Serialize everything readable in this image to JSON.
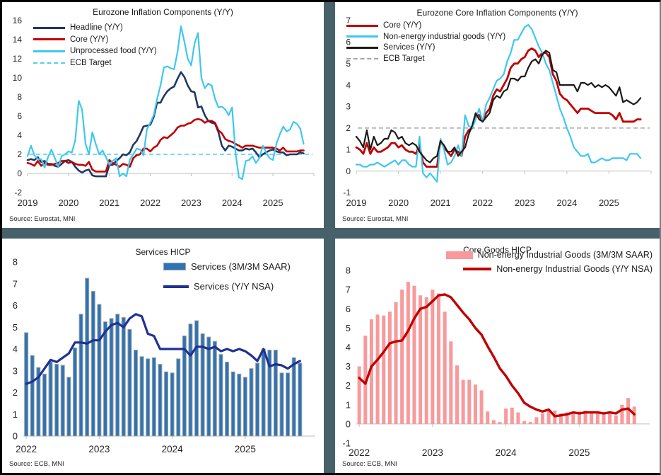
{
  "frame": {
    "divider_color": "#46616A",
    "background": "#FFFFFF",
    "border_color": "#000000"
  },
  "chart_data": [
    {
      "id": "tl",
      "type": "line",
      "title": "Eurozone Inflation Components (Y/Y)",
      "source": "Source: Eurostat, MNI",
      "x_start": 2019,
      "xlim": [
        2019,
        2026
      ],
      "x_ticks": [
        2019,
        2020,
        2021,
        2022,
        2023,
        2024,
        2025
      ],
      "ylim": [
        -2,
        16
      ],
      "ytick_step": 2,
      "grid": "zero-axis-only",
      "legend_position": "top-left",
      "target": {
        "label": "ECB Target",
        "value": 2,
        "color": "#55CCF2"
      },
      "series": [
        {
          "name": "Headline (Y/Y)",
          "color": "#1F3864",
          "width": 2.6,
          "values": [
            1.4,
            1.5,
            1.4,
            1.7,
            1.2,
            1.3,
            1.0,
            1.0,
            0.8,
            0.7,
            1.0,
            1.3,
            1.4,
            1.2,
            0.7,
            0.3,
            0.1,
            0.3,
            0.4,
            -0.2,
            -0.3,
            -0.3,
            -0.3,
            -0.3,
            0.9,
            0.9,
            1.3,
            1.6,
            2.0,
            1.9,
            2.2,
            3.0,
            3.4,
            4.1,
            4.9,
            5.0,
            5.1,
            5.9,
            7.4,
            7.4,
            8.1,
            8.6,
            8.9,
            9.1,
            9.9,
            10.6,
            10.1,
            9.2,
            8.6,
            8.5,
            6.9,
            7.0,
            6.1,
            5.5,
            5.3,
            5.2,
            4.3,
            2.9,
            2.4,
            2.9,
            2.8,
            2.6,
            2.4,
            2.4,
            2.6,
            2.5,
            2.6,
            2.2,
            1.7,
            2.0,
            2.2,
            2.4,
            2.5,
            2.3,
            2.2,
            2.2,
            1.9,
            2.0,
            2.0,
            2.0,
            2.2,
            2.1
          ]
        },
        {
          "name": "Core (Y/Y)",
          "color": "#C00000",
          "width": 2.6,
          "values": [
            1.1,
            1.0,
            0.8,
            1.3,
            0.8,
            1.1,
            0.9,
            0.9,
            1.0,
            1.1,
            1.3,
            1.3,
            1.1,
            1.2,
            1.0,
            0.9,
            0.9,
            0.8,
            1.2,
            0.4,
            0.2,
            0.2,
            0.2,
            0.2,
            1.4,
            1.1,
            0.9,
            0.7,
            1.0,
            0.9,
            0.7,
            1.6,
            1.9,
            2.0,
            2.6,
            2.6,
            2.3,
            2.7,
            2.9,
            3.5,
            3.8,
            3.7,
            4.0,
            4.3,
            4.8,
            5.0,
            5.0,
            5.2,
            5.3,
            5.6,
            5.7,
            5.6,
            5.3,
            5.5,
            5.5,
            5.3,
            4.5,
            4.2,
            3.6,
            3.4,
            3.3,
            3.1,
            2.9,
            2.7,
            2.9,
            2.9,
            2.9,
            2.8,
            2.7,
            2.7,
            2.7,
            2.7,
            2.7,
            2.6,
            2.4,
            2.7,
            2.3,
            2.3,
            2.3,
            2.3,
            2.4,
            2.4
          ]
        },
        {
          "name": "Unprocessed food (Y/Y)",
          "color": "#3EC7F0",
          "width": 2.2,
          "values": [
            1.8,
            2.9,
            1.9,
            1.5,
            1.5,
            0.6,
            1.7,
            2.5,
            1.6,
            0.7,
            1.8,
            2.0,
            2.3,
            2.2,
            3.5,
            7.6,
            6.7,
            3.1,
            2.0,
            4.3,
            3.1,
            2.0,
            2.4,
            1.7,
            0.9,
            1.3,
            1.6,
            -0.3,
            0.0,
            -0.3,
            1.4,
            2.0,
            2.6,
            2.5,
            1.9,
            4.6,
            5.3,
            6.1,
            7.8,
            9.2,
            11.1,
            11.2,
            11.0,
            10.9,
            12.7,
            15.4,
            13.8,
            12.0,
            11.3,
            13.6,
            14.7,
            10.0,
            8.9,
            9.4,
            9.2,
            7.8,
            6.9,
            7.0,
            6.7,
            6.1,
            6.9,
            2.2,
            -0.4,
            -0.6,
            1.3,
            1.4,
            1.8,
            1.1,
            1.6,
            2.9,
            2.2,
            1.6,
            1.4,
            3.1,
            4.1,
            4.9,
            4.4,
            4.6,
            5.4,
            5.2,
            4.7,
            3.1
          ]
        }
      ]
    },
    {
      "id": "tr",
      "type": "line",
      "title": "Eurozone Core Inflation Components (Y/Y)",
      "source": "Source: Eurostat, MNI",
      "x_start": 2019,
      "xlim": [
        2019,
        2026
      ],
      "x_ticks": [
        2019,
        2020,
        2021,
        2022,
        2023,
        2024,
        2025
      ],
      "ylim": [
        -1,
        7
      ],
      "ytick_step": 1,
      "grid": "zero-axis-only",
      "legend_position": "top-left",
      "target": {
        "label": "ECB Target",
        "value": 2,
        "color": "#A6A6A6"
      },
      "series": [
        {
          "name": "Core (Y/Y)",
          "color": "#C00000",
          "width": 2.8,
          "values": [
            1.1,
            1.0,
            0.8,
            1.3,
            0.8,
            1.1,
            0.9,
            0.9,
            1.0,
            1.1,
            1.3,
            1.3,
            1.1,
            1.2,
            1.0,
            0.9,
            0.9,
            0.8,
            1.2,
            0.4,
            0.2,
            0.2,
            0.2,
            0.2,
            1.4,
            1.1,
            0.9,
            0.7,
            1.0,
            0.9,
            0.7,
            1.6,
            1.9,
            2.0,
            2.6,
            2.6,
            2.3,
            2.7,
            2.9,
            3.5,
            3.8,
            3.7,
            4.0,
            4.3,
            4.8,
            5.0,
            5.0,
            5.2,
            5.3,
            5.6,
            5.7,
            5.6,
            5.3,
            5.5,
            5.5,
            5.3,
            4.5,
            4.2,
            3.6,
            3.4,
            3.3,
            3.1,
            2.9,
            2.7,
            2.9,
            2.9,
            2.9,
            2.8,
            2.7,
            2.7,
            2.7,
            2.7,
            2.7,
            2.6,
            2.4,
            2.7,
            2.3,
            2.3,
            2.3,
            2.3,
            2.4,
            2.4
          ]
        },
        {
          "name": "Non-energy industrial goods (Y/Y)",
          "color": "#3EC7F0",
          "width": 2.2,
          "values": [
            0.3,
            0.3,
            0.2,
            0.2,
            0.3,
            0.3,
            0.4,
            0.3,
            0.2,
            0.3,
            0.4,
            0.5,
            0.3,
            0.5,
            0.5,
            0.3,
            0.2,
            0.2,
            1.6,
            -0.1,
            -0.3,
            -0.1,
            -0.3,
            -0.5,
            1.5,
            1.0,
            0.3,
            0.4,
            0.7,
            1.2,
            0.7,
            2.6,
            2.1,
            2.0,
            2.4,
            2.9,
            2.3,
            3.1,
            3.4,
            3.8,
            4.2,
            4.3,
            4.5,
            5.1,
            5.5,
            6.1,
            6.1,
            6.4,
            6.7,
            6.8,
            6.6,
            6.2,
            5.8,
            5.5,
            5.0,
            4.7,
            4.1,
            3.5,
            2.9,
            2.5,
            2.0,
            1.6,
            1.1,
            0.9,
            0.7,
            0.7,
            0.8,
            0.4,
            0.4,
            0.5,
            0.6,
            0.5,
            0.5,
            0.6,
            0.6,
            0.6,
            0.6,
            0.5,
            0.8,
            0.8,
            0.8,
            0.6
          ]
        },
        {
          "name": "Services (Y/Y)",
          "color": "#1A1A1A",
          "width": 2.2,
          "values": [
            1.6,
            1.4,
            1.1,
            1.9,
            1.0,
            1.6,
            1.2,
            1.3,
            1.5,
            1.5,
            1.9,
            1.8,
            1.5,
            1.6,
            1.3,
            1.2,
            1.3,
            1.2,
            0.9,
            0.7,
            0.5,
            0.4,
            0.6,
            0.7,
            1.4,
            1.2,
            0.9,
            0.9,
            1.1,
            0.7,
            0.9,
            1.1,
            1.7,
            2.1,
            2.7,
            2.4,
            2.3,
            2.5,
            2.7,
            3.3,
            3.5,
            3.4,
            3.7,
            3.8,
            4.3,
            4.3,
            4.2,
            4.4,
            4.4,
            4.8,
            5.1,
            5.2,
            5.0,
            5.4,
            5.6,
            5.5,
            4.7,
            4.6,
            4.0,
            4.0,
            4.0,
            4.0,
            4.0,
            3.7,
            4.1,
            4.1,
            4.0,
            4.1,
            3.9,
            4.0,
            3.9,
            4.0,
            3.9,
            3.7,
            3.5,
            3.9,
            3.2,
            3.3,
            3.2,
            3.1,
            3.2,
            3.4
          ]
        }
      ]
    },
    {
      "id": "bl",
      "type": "bar-line",
      "title": "Services HICP",
      "source": "Source: ECB, MNI",
      "x_start": 2022,
      "xlim": [
        2021.96,
        2025.96
      ],
      "x_ticks": [
        2022,
        2023,
        2024,
        2025
      ],
      "ylim": [
        0,
        8
      ],
      "ytick_step": 1,
      "grid": "zero-axis-only",
      "legend_position": "top-right",
      "bars": {
        "name": "Services (3M/3M SAAR)",
        "fill": "#2E74B5",
        "stroke": "#A3A3A3",
        "values": [
          4.75,
          3.7,
          3.15,
          2.85,
          3.4,
          3.3,
          3.25,
          2.7,
          4.05,
          5.6,
          7.25,
          6.65,
          6.05,
          5.25,
          5.4,
          5.6,
          5.45,
          4.9,
          3.95,
          3.65,
          3.55,
          3.6,
          3.3,
          2.95,
          2.9,
          3.55,
          4.6,
          5.15,
          5.3,
          4.7,
          4.55,
          4.35,
          3.75,
          3.4,
          2.95,
          2.85,
          2.7,
          3.1,
          3.35,
          4.0,
          3.95,
          3.95,
          2.9,
          2.9,
          3.6,
          3.35
        ]
      },
      "series": [
        {
          "name": "Services (Y/Y NSA)",
          "color": "#1F3191",
          "width": 3.2,
          "values": [
            2.4,
            2.5,
            2.7,
            3.1,
            3.5,
            3.4,
            3.6,
            3.8,
            4.3,
            4.3,
            4.25,
            4.4,
            4.4,
            4.8,
            5.1,
            5.2,
            5.0,
            5.4,
            5.6,
            5.5,
            4.7,
            4.6,
            4.0,
            4.0,
            4.0,
            4.0,
            4.0,
            3.7,
            4.1,
            4.1,
            4.0,
            4.1,
            3.9,
            4.0,
            3.9,
            4.0,
            3.9,
            3.7,
            3.45,
            4.0,
            3.2,
            3.3,
            3.25,
            3.1,
            3.3,
            3.45
          ]
        }
      ]
    },
    {
      "id": "br",
      "type": "bar-line",
      "title": "Core Goods HICP",
      "source": "Source: ECB, MNI",
      "x_start": 2022,
      "xlim": [
        2021.96,
        2025.96
      ],
      "x_ticks": [
        2022,
        2023,
        2024,
        2025
      ],
      "ylim": [
        -1,
        8
      ],
      "ytick_step": 1,
      "grid": "zero-axis-only",
      "legend_position": "top-right",
      "bars": {
        "name": "Non-energy Industrial Goods (3M/3M SAAR)",
        "fill": "#F8999B",
        "stroke": null,
        "values": [
          3.0,
          4.6,
          5.45,
          5.7,
          5.65,
          5.85,
          6.35,
          7.0,
          7.4,
          7.2,
          6.7,
          6.6,
          7.0,
          6.8,
          5.85,
          4.3,
          3.05,
          2.3,
          2.3,
          2.05,
          1.75,
          0.65,
          0.2,
          0.1,
          0.8,
          0.85,
          0.6,
          0.15,
          0.1,
          0.35,
          0.55,
          0.75,
          0.7,
          0.55,
          0.6,
          0.55,
          0.65,
          0.7,
          0.6,
          0.55,
          0.6,
          0.55,
          0.45,
          1.0,
          1.35,
          0.9
        ]
      },
      "series": [
        {
          "name": "Non-energy Industrial Goods (Y/Y NSA)",
          "color": "#C00000",
          "width": 3.4,
          "values": [
            2.4,
            2.1,
            3.0,
            3.35,
            3.75,
            4.2,
            4.3,
            4.35,
            4.85,
            5.5,
            6.0,
            6.1,
            6.4,
            6.7,
            6.75,
            6.6,
            6.2,
            5.8,
            5.45,
            5.0,
            4.65,
            4.05,
            3.5,
            2.9,
            2.5,
            2.0,
            1.6,
            1.1,
            0.9,
            0.75,
            0.65,
            0.75,
            0.4,
            0.45,
            0.5,
            0.6,
            0.55,
            0.6,
            0.6,
            0.6,
            0.55,
            0.6,
            0.55,
            0.75,
            0.8,
            0.5
          ]
        }
      ]
    }
  ]
}
